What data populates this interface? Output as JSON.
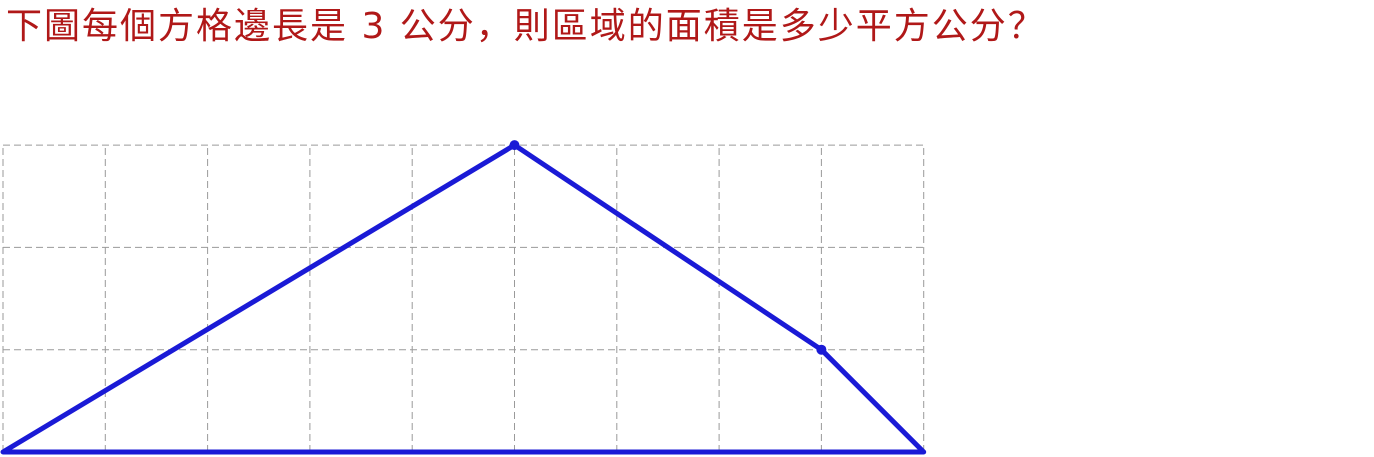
{
  "question": {
    "text": "下圖每個方格邊長是 3 公分，則區域的面積是多少平方公分？",
    "color": "#b01818"
  },
  "figure": {
    "grid": {
      "columns": 9,
      "rows": 3,
      "line_color": "#9a9a9a"
    },
    "polygon": {
      "color": "#1a1ad6",
      "vertices_in_grid_units": [
        [
          0,
          0
        ],
        [
          9,
          0
        ],
        [
          8,
          1
        ],
        [
          5,
          3
        ]
      ],
      "marked_vertices_in_grid_units": [
        [
          8,
          1
        ],
        [
          5,
          3
        ]
      ]
    }
  }
}
